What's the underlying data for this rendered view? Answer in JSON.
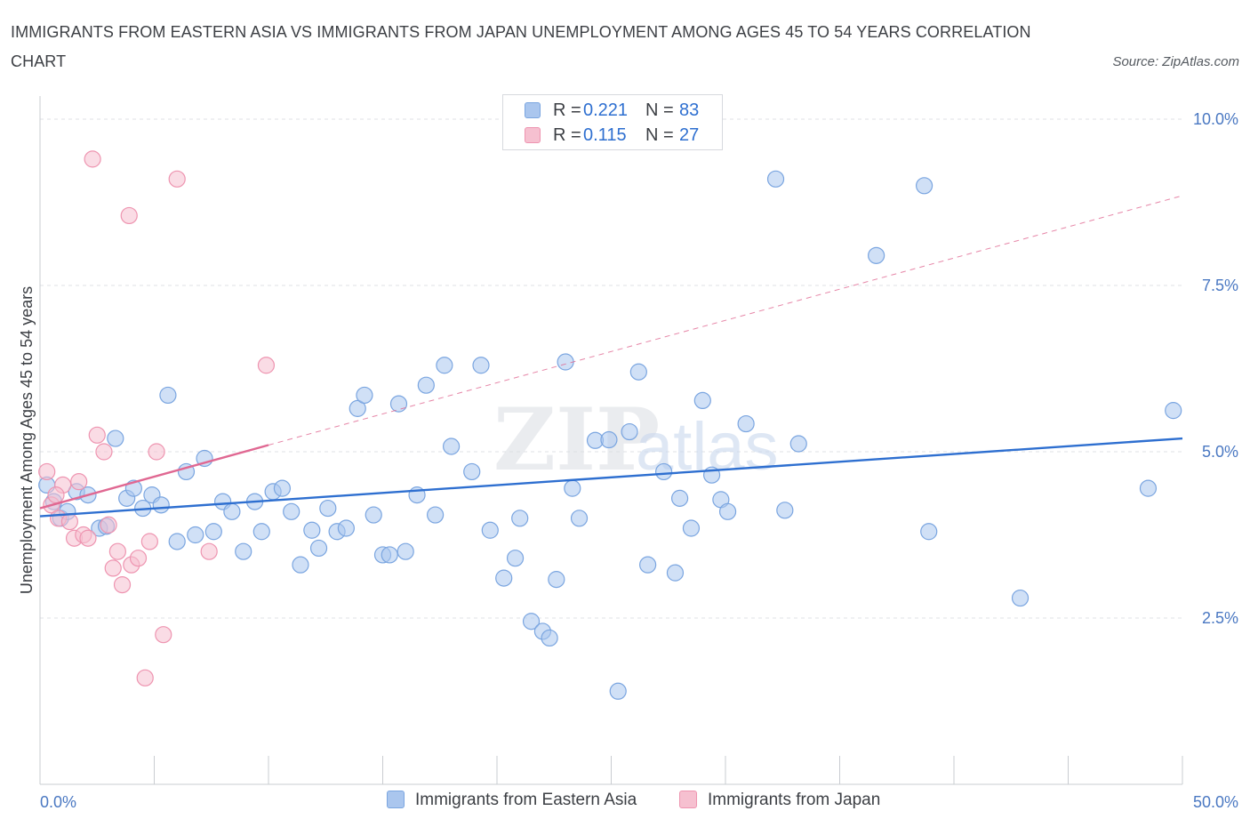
{
  "title": "IMMIGRANTS FROM EASTERN ASIA VS IMMIGRANTS FROM JAPAN UNEMPLOYMENT AMONG AGES 45 TO 54 YEARS CORRELATION CHART",
  "source": "Source: ZipAtlas.com",
  "watermark": "ZIPatlas",
  "colors": {
    "blue_fill": "#aac6ee",
    "blue_stroke": "#7aa5e0",
    "blue_line": "#2e6fd0",
    "pink_fill": "#f6c0d0",
    "pink_stroke": "#ee94b0",
    "pink_line": "#e06892",
    "tick_text": "#4a78c2",
    "grid": "#dfe2e6"
  },
  "legend": {
    "rows": [
      {
        "r_label": "R =",
        "r_value": "0.221",
        "n_label": "N =",
        "n_value": "83"
      },
      {
        "r_label": "R =",
        "r_value": "0.115",
        "n_label": "N =",
        "n_value": "27"
      }
    ],
    "bottom": [
      "Immigrants from Eastern Asia",
      "Immigrants from Japan"
    ]
  },
  "chart_data": {
    "type": "scatter",
    "ylabel": "Unemployment Among Ages 45 to 54 years",
    "xlim": [
      0,
      50
    ],
    "ylim": [
      0,
      10.2
    ],
    "x_tick_labels": [
      {
        "value": 0,
        "label": "0.0%"
      },
      {
        "value": 50,
        "label": "50.0%"
      }
    ],
    "y_tick_labels": [
      {
        "value": 2.5,
        "label": "2.5%"
      },
      {
        "value": 5.0,
        "label": "5.0%"
      },
      {
        "value": 7.5,
        "label": "7.5%"
      },
      {
        "value": 10.0,
        "label": "10.0%"
      }
    ],
    "grid": true,
    "series": [
      {
        "name": "Immigrants from Eastern Asia",
        "color": "blue",
        "trend": {
          "x": [
            0,
            50
          ],
          "y": [
            4.03,
            5.2
          ]
        },
        "points": [
          [
            0.3,
            4.5
          ],
          [
            0.6,
            4.25
          ],
          [
            0.9,
            4.0
          ],
          [
            1.2,
            4.1
          ],
          [
            1.6,
            4.4
          ],
          [
            2.1,
            4.35
          ],
          [
            2.6,
            3.85
          ],
          [
            2.9,
            3.88
          ],
          [
            3.3,
            5.2
          ],
          [
            3.8,
            4.3
          ],
          [
            4.1,
            4.45
          ],
          [
            4.5,
            4.15
          ],
          [
            4.9,
            4.35
          ],
          [
            5.3,
            4.2
          ],
          [
            5.6,
            5.85
          ],
          [
            6.0,
            3.65
          ],
          [
            6.4,
            4.7
          ],
          [
            6.8,
            3.75
          ],
          [
            7.2,
            4.9
          ],
          [
            7.6,
            3.8
          ],
          [
            8.0,
            4.25
          ],
          [
            8.4,
            4.1
          ],
          [
            8.9,
            3.5
          ],
          [
            9.4,
            4.25
          ],
          [
            9.7,
            3.8
          ],
          [
            10.2,
            4.4
          ],
          [
            10.6,
            4.45
          ],
          [
            11.0,
            4.1
          ],
          [
            11.4,
            3.3
          ],
          [
            11.9,
            3.82
          ],
          [
            12.2,
            3.55
          ],
          [
            12.6,
            4.15
          ],
          [
            13.0,
            3.8
          ],
          [
            13.4,
            3.85
          ],
          [
            13.9,
            5.65
          ],
          [
            14.2,
            5.85
          ],
          [
            14.6,
            4.05
          ],
          [
            15.0,
            3.45
          ],
          [
            15.3,
            3.45
          ],
          [
            15.7,
            5.72
          ],
          [
            16.0,
            3.5
          ],
          [
            16.5,
            4.35
          ],
          [
            16.9,
            6.0
          ],
          [
            17.3,
            4.05
          ],
          [
            17.7,
            6.3
          ],
          [
            18.0,
            5.08
          ],
          [
            18.9,
            4.7
          ],
          [
            19.3,
            6.3
          ],
          [
            19.7,
            3.82
          ],
          [
            20.3,
            3.1
          ],
          [
            20.8,
            3.4
          ],
          [
            21.0,
            4.0
          ],
          [
            21.5,
            2.45
          ],
          [
            22.0,
            2.3
          ],
          [
            22.3,
            2.2
          ],
          [
            22.6,
            3.08
          ],
          [
            23.0,
            6.35
          ],
          [
            23.3,
            4.45
          ],
          [
            23.6,
            4.0
          ],
          [
            24.3,
            5.17
          ],
          [
            24.9,
            5.18
          ],
          [
            25.3,
            1.4
          ],
          [
            25.8,
            5.3
          ],
          [
            26.2,
            6.2
          ],
          [
            26.6,
            3.3
          ],
          [
            27.3,
            4.7
          ],
          [
            27.8,
            3.18
          ],
          [
            28.0,
            4.3
          ],
          [
            28.5,
            3.85
          ],
          [
            29.0,
            5.77
          ],
          [
            29.4,
            4.65
          ],
          [
            29.8,
            4.28
          ],
          [
            30.1,
            4.1
          ],
          [
            30.9,
            5.42
          ],
          [
            32.2,
            9.1
          ],
          [
            32.6,
            4.12
          ],
          [
            33.2,
            5.12
          ],
          [
            36.6,
            7.95
          ],
          [
            38.7,
            9.0
          ],
          [
            38.9,
            3.8
          ],
          [
            42.9,
            2.8
          ],
          [
            48.5,
            4.45
          ],
          [
            49.6,
            5.62
          ]
        ]
      },
      {
        "name": "Immigrants from Japan",
        "color": "pink",
        "trend": {
          "x": [
            0,
            10
          ],
          "y": [
            4.15,
            5.1
          ],
          "dashed_extension": {
            "x": [
              10,
              50
            ],
            "y": [
              5.1,
              8.85
            ]
          }
        },
        "points": [
          [
            0.3,
            4.7
          ],
          [
            0.5,
            4.2
          ],
          [
            0.8,
            4.0
          ],
          [
            1.0,
            4.5
          ],
          [
            1.3,
            3.95
          ],
          [
            1.5,
            3.7
          ],
          [
            1.7,
            4.55
          ],
          [
            1.9,
            3.75
          ],
          [
            2.1,
            3.7
          ],
          [
            2.5,
            5.25
          ],
          [
            2.8,
            5.0
          ],
          [
            3.0,
            3.9
          ],
          [
            3.2,
            3.25
          ],
          [
            3.4,
            3.5
          ],
          [
            3.6,
            3.0
          ],
          [
            3.9,
            8.55
          ],
          [
            4.0,
            3.3
          ],
          [
            4.3,
            3.4
          ],
          [
            4.6,
            1.6
          ],
          [
            4.8,
            3.65
          ],
          [
            5.1,
            5.0
          ],
          [
            5.4,
            2.25
          ],
          [
            6.0,
            9.1
          ],
          [
            7.4,
            3.5
          ],
          [
            9.9,
            6.3
          ],
          [
            2.3,
            9.4
          ],
          [
            0.7,
            4.35
          ]
        ]
      }
    ]
  }
}
